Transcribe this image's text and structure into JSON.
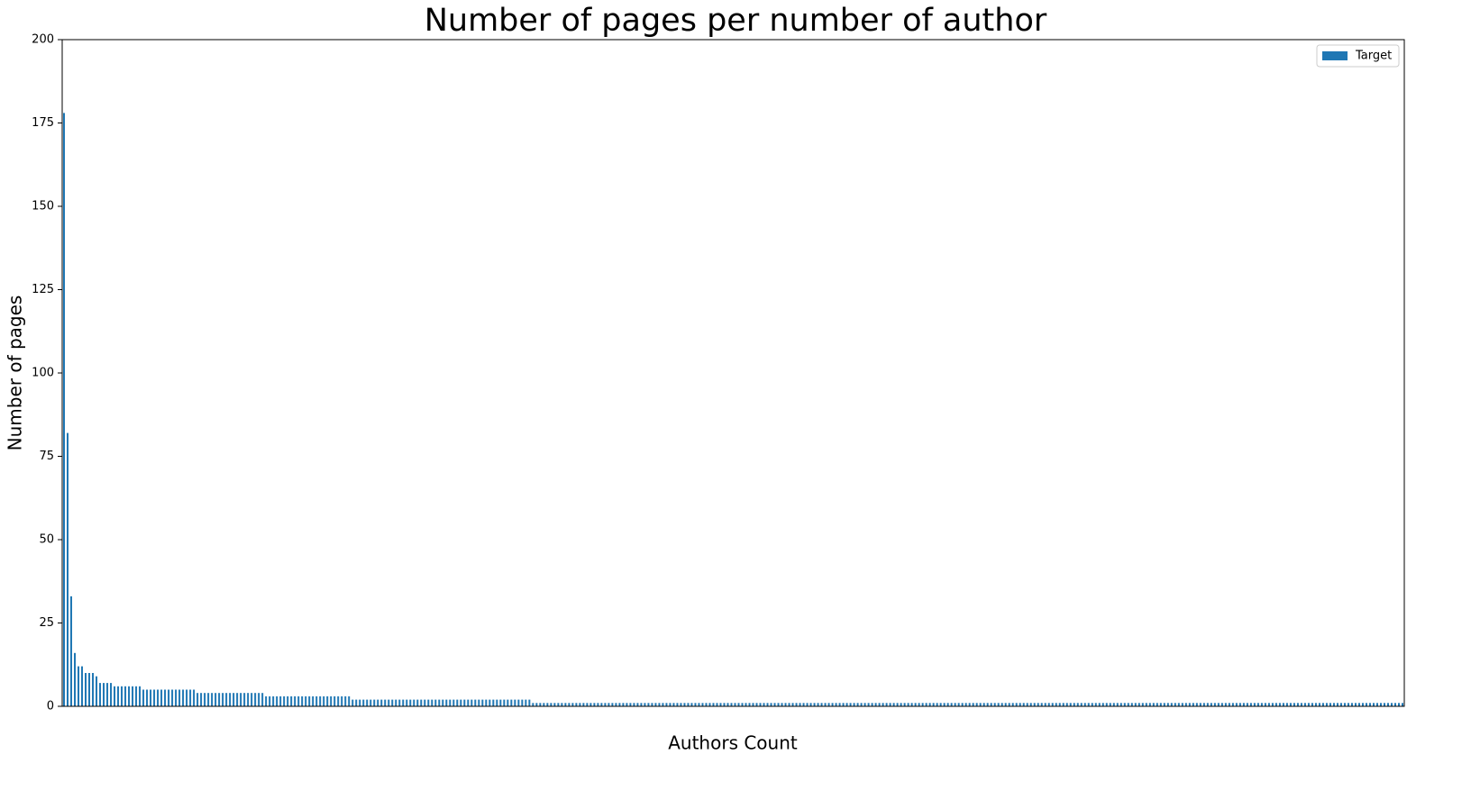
{
  "chart_data": {
    "type": "bar",
    "title": "Number of pages per number of author",
    "x_label": "Authors Count",
    "y_label": "Number of pages",
    "ylim": [
      0,
      200
    ],
    "yticks": [
      0,
      25,
      50,
      75,
      100,
      125,
      150,
      175,
      200
    ],
    "legend": "upper right",
    "categories": [
      null,
      null,
      null,
      null,
      null,
      null,
      null,
      null,
      null,
      null,
      null,
      null,
      null,
      null,
      null,
      null,
      null,
      null,
      null,
      null,
      null,
      null,
      null,
      null,
      null,
      null,
      null,
      null,
      null,
      null,
      null,
      null,
      null,
      null,
      null,
      null,
      null,
      null,
      null,
      null,
      null,
      null,
      null,
      null,
      null,
      null,
      null,
      null,
      null,
      null,
      null,
      null,
      null,
      null,
      null,
      null,
      null,
      null,
      null,
      null,
      null,
      null,
      null,
      null,
      null,
      null,
      null,
      null,
      null,
      null,
      null,
      null,
      null,
      null,
      null,
      null,
      null,
      null,
      null,
      null,
      null,
      null,
      null,
      null,
      null,
      null,
      null,
      null,
      null,
      null,
      null,
      null,
      null,
      null,
      null,
      null,
      null,
      null,
      null,
      null,
      null,
      null,
      null,
      null,
      null,
      null,
      null,
      null,
      null,
      null,
      null,
      null,
      null,
      null,
      null,
      null,
      null,
      null,
      null,
      null,
      null,
      null,
      null,
      null,
      null,
      null,
      null,
      null,
      null,
      null,
      null,
      null,
      null,
      null,
      null,
      null,
      null,
      null,
      null,
      null,
      null,
      null,
      null,
      null,
      null,
      null,
      null,
      null,
      null,
      null,
      null,
      null,
      null,
      null,
      null,
      null,
      null,
      null,
      null,
      null,
      null,
      null,
      null,
      null,
      null,
      null,
      null,
      null,
      null,
      null,
      null,
      null,
      null,
      null,
      null,
      null,
      null,
      null,
      null,
      null,
      null,
      null,
      null,
      null,
      null,
      null,
      null,
      null,
      null,
      null,
      null,
      null,
      null,
      null,
      null,
      null,
      null,
      null,
      null,
      null,
      null,
      null,
      null,
      null,
      null,
      null,
      null,
      null,
      null,
      null,
      null,
      null,
      null,
      null,
      null,
      null,
      null,
      null,
      null,
      null,
      null,
      null,
      null,
      null,
      null,
      null,
      null,
      null,
      null,
      null,
      null,
      null,
      null,
      null,
      null,
      null,
      null,
      null,
      null,
      null,
      null,
      null,
      null,
      null,
      null,
      null,
      null,
      null,
      null,
      null,
      null,
      null,
      null,
      null,
      null,
      null,
      null,
      null,
      null,
      null,
      null,
      null,
      null,
      null,
      null,
      null,
      null,
      null,
      null,
      null,
      null,
      null,
      null,
      null,
      null,
      null,
      null,
      null,
      null,
      null,
      null,
      null,
      null,
      null,
      null,
      null,
      null,
      null,
      null,
      null,
      null,
      null,
      null,
      null,
      null,
      null,
      null,
      null,
      null,
      null,
      null,
      null,
      null,
      null,
      null,
      null,
      null,
      null,
      null,
      null,
      null,
      null,
      null,
      null,
      null,
      null,
      null,
      null,
      null,
      null,
      null,
      null,
      null,
      null,
      null,
      null,
      null,
      null,
      null,
      null,
      null,
      null,
      null,
      null,
      null,
      null,
      null,
      null,
      null,
      null,
      null,
      null,
      null,
      null,
      null,
      null,
      null,
      null,
      null,
      null,
      null,
      null,
      null,
      null,
      null,
      null,
      null,
      null,
      null,
      null,
      null,
      null,
      null,
      null,
      null,
      null,
      null,
      null,
      null,
      null,
      null,
      null
    ],
    "series": [
      {
        "name": "Target",
        "color": "#1f77b4",
        "values": [
          178,
          82,
          33,
          16,
          12,
          12,
          10,
          10,
          10,
          9,
          7,
          7,
          7,
          7,
          6,
          6,
          6,
          6,
          6,
          6,
          6,
          6,
          5,
          5,
          5,
          5,
          5,
          5,
          5,
          5,
          5,
          5,
          5,
          5,
          5,
          5,
          5,
          4,
          4,
          4,
          4,
          4,
          4,
          4,
          4,
          4,
          4,
          4,
          4,
          4,
          4,
          4,
          4,
          4,
          4,
          4,
          3,
          3,
          3,
          3,
          3,
          3,
          3,
          3,
          3,
          3,
          3,
          3,
          3,
          3,
          3,
          3,
          3,
          3,
          3,
          3,
          3,
          3,
          3,
          3,
          2,
          2,
          2,
          2,
          2,
          2,
          2,
          2,
          2,
          2,
          2,
          2,
          2,
          2,
          2,
          2,
          2,
          2,
          2,
          2,
          2,
          2,
          2,
          2,
          2,
          2,
          2,
          2,
          2,
          2,
          2,
          2,
          2,
          2,
          2,
          2,
          2,
          2,
          2,
          2,
          2,
          2,
          2,
          2,
          2,
          2,
          2,
          2,
          2,
          2,
          1,
          1,
          1,
          1,
          1,
          1,
          1,
          1,
          1,
          1,
          1,
          1,
          1,
          1,
          1,
          1,
          1,
          1,
          1,
          1,
          1,
          1,
          1,
          1,
          1,
          1,
          1,
          1,
          1,
          1,
          1,
          1,
          1,
          1,
          1,
          1,
          1,
          1,
          1,
          1,
          1,
          1,
          1,
          1,
          1,
          1,
          1,
          1,
          1,
          1,
          1,
          1,
          1,
          1,
          1,
          1,
          1,
          1,
          1,
          1,
          1,
          1,
          1,
          1,
          1,
          1,
          1,
          1,
          1,
          1,
          1,
          1,
          1,
          1,
          1,
          1,
          1,
          1,
          1,
          1,
          1,
          1,
          1,
          1,
          1,
          1,
          1,
          1,
          1,
          1,
          1,
          1,
          1,
          1,
          1,
          1,
          1,
          1,
          1,
          1,
          1,
          1,
          1,
          1,
          1,
          1,
          1,
          1,
          1,
          1,
          1,
          1,
          1,
          1,
          1,
          1,
          1,
          1,
          1,
          1,
          1,
          1,
          1,
          1,
          1,
          1,
          1,
          1,
          1,
          1,
          1,
          1,
          1,
          1,
          1,
          1,
          1,
          1,
          1,
          1,
          1,
          1,
          1,
          1,
          1,
          1,
          1,
          1,
          1,
          1,
          1,
          1,
          1,
          1,
          1,
          1,
          1,
          1,
          1,
          1,
          1,
          1,
          1,
          1,
          1,
          1,
          1,
          1,
          1,
          1,
          1,
          1,
          1,
          1,
          1,
          1,
          1,
          1,
          1,
          1,
          1,
          1,
          1,
          1,
          1,
          1,
          1,
          1,
          1,
          1,
          1,
          1,
          1,
          1,
          1,
          1,
          1,
          1,
          1,
          1,
          1,
          1,
          1,
          1,
          1,
          1,
          1,
          1,
          1,
          1,
          1,
          1,
          1,
          1,
          1,
          1,
          1,
          1,
          1,
          1,
          1,
          1,
          1,
          1,
          1,
          1,
          1,
          1,
          1,
          1,
          1,
          1,
          1,
          1,
          1,
          1,
          1,
          1,
          1,
          1,
          1,
          1
        ]
      }
    ]
  }
}
